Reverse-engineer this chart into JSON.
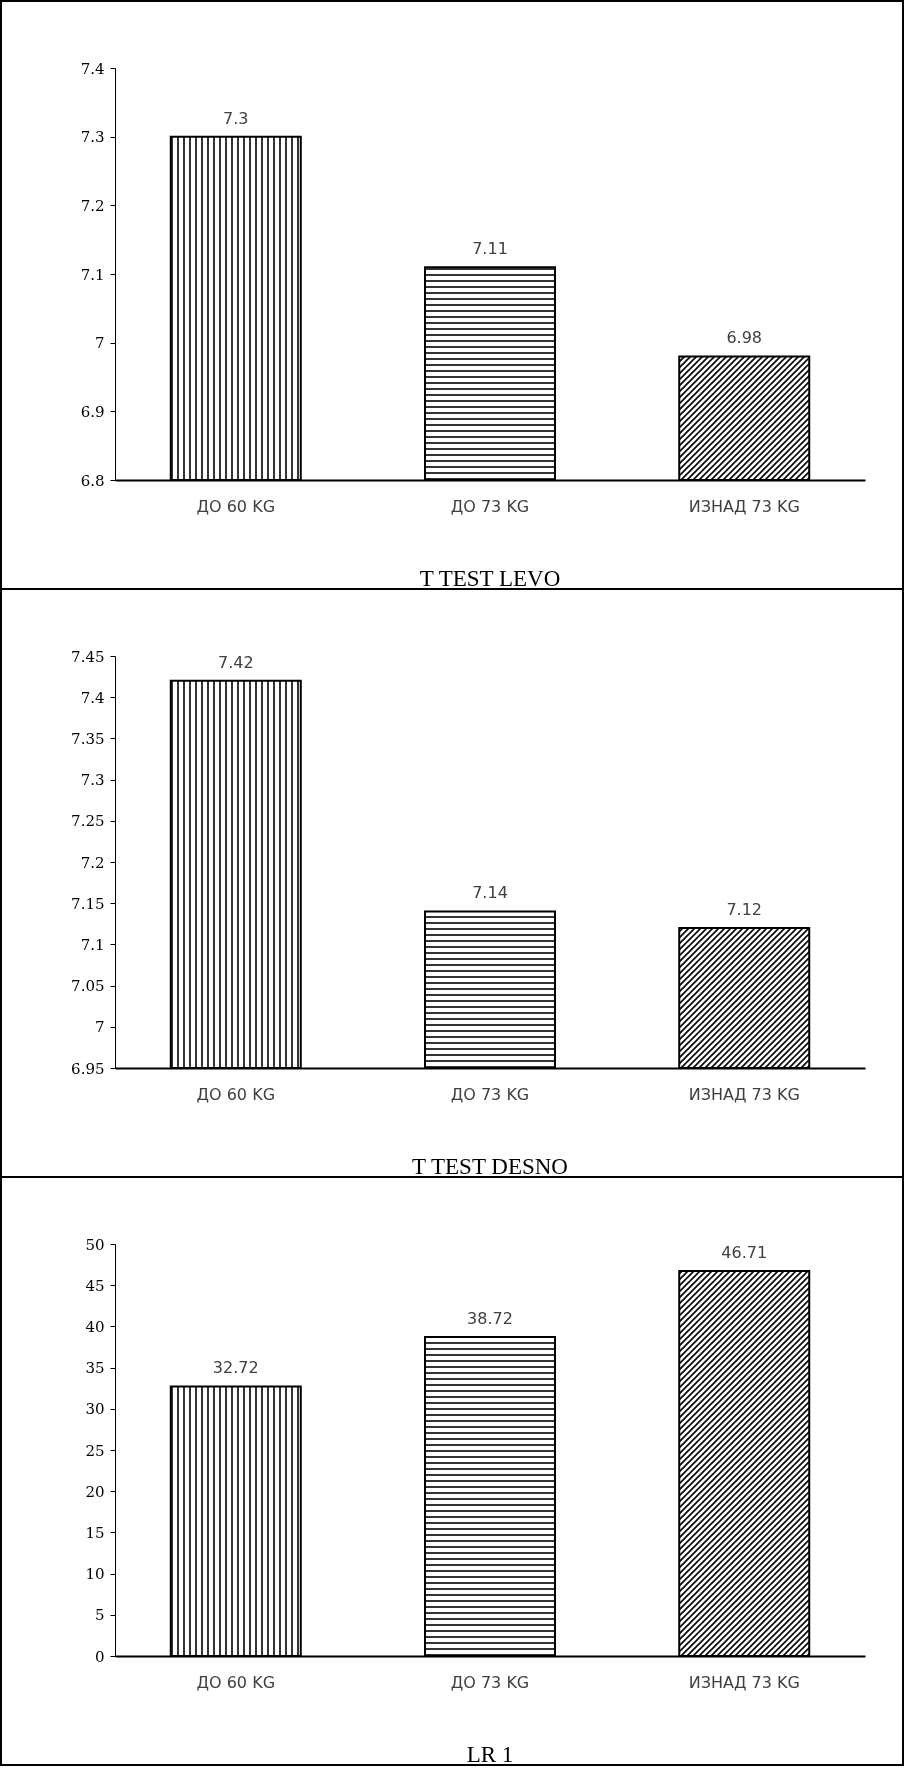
{
  "chart_data": [
    {
      "type": "bar",
      "title": "T TEST LEVO",
      "categories": [
        "ДО 60 KG",
        "ДО 73 KG",
        "ИЗНАД 73 KG"
      ],
      "values": [
        7.3,
        7.11,
        6.98
      ],
      "colors": [
        "#000000",
        "#000000",
        "#000000"
      ],
      "ylim": [
        6.8,
        7.4
      ],
      "yticks": [
        6.8,
        6.9,
        7,
        7.1,
        7.2,
        7.3,
        7.4
      ],
      "data_labels": true,
      "grid": false
    },
    {
      "type": "bar",
      "title": "T TEST DESNO",
      "categories": [
        "ДО 60 KG",
        "ДО 73 KG",
        "ИЗНАД 73 KG"
      ],
      "values": [
        7.42,
        7.14,
        7.12
      ],
      "colors": [
        "#000000",
        "#000000",
        "#000000"
      ],
      "ylim": [
        6.95,
        7.45
      ],
      "yticks": [
        6.95,
        7,
        7.05,
        7.1,
        7.15,
        7.2,
        7.25,
        7.3,
        7.35,
        7.4,
        7.45
      ],
      "data_labels": true,
      "grid": false
    },
    {
      "type": "bar",
      "title": "LR 1",
      "categories": [
        "ДО 60 KG",
        "ДО 73 KG",
        "ИЗНАД 73 KG"
      ],
      "values": [
        32.72,
        38.72,
        46.71
      ],
      "colors": [
        "#000000",
        "#000000",
        "#000000"
      ],
      "ylim": [
        0,
        50
      ],
      "yticks": [
        0,
        5,
        10,
        15,
        20,
        25,
        30,
        35,
        40,
        45,
        50
      ],
      "data_labels": true,
      "grid": false
    }
  ]
}
